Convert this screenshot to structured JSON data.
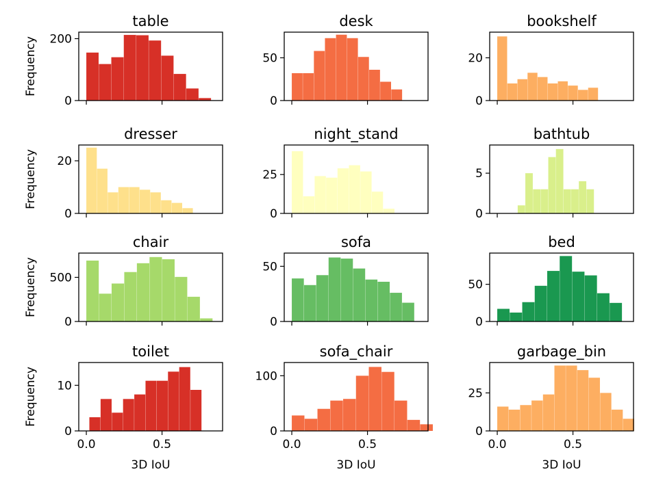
{
  "figure": {
    "colors": [
      "#d73027",
      "#f46d43",
      "#fdae61",
      "#fee08b",
      "#ffffbf",
      "#d9ef8b",
      "#a6d96a",
      "#66bd63",
      "#1a9850"
    ]
  },
  "chart_data": [
    {
      "type": "bar",
      "title": "table",
      "xlabel": "",
      "ylabel": "Frequency",
      "xlim": [
        -0.05,
        0.9
      ],
      "ylim": [
        0,
        221
      ],
      "yticks": [
        {
          "value": 0,
          "label": "0"
        },
        {
          "value": 200,
          "label": "200"
        }
      ],
      "xticks": [
        {
          "value": 0,
          "label": ""
        },
        {
          "value": 0.5,
          "label": ""
        }
      ],
      "bin_start": 0.0,
      "bin_width": 0.0825,
      "values": [
        155,
        118,
        140,
        212,
        211,
        194,
        145,
        86,
        39,
        8
      ],
      "color": "#d73027"
    },
    {
      "type": "bar",
      "title": "desk",
      "xlabel": "",
      "ylabel": "",
      "xlim": [
        -0.05,
        0.9
      ],
      "ylim": [
        0,
        80
      ],
      "yticks": [
        {
          "value": 0,
          "label": "0"
        },
        {
          "value": 50,
          "label": "50"
        }
      ],
      "xticks": [
        {
          "value": 0,
          "label": ""
        },
        {
          "value": 0.5,
          "label": ""
        }
      ],
      "bin_start": 0.0,
      "bin_width": 0.073,
      "values": [
        32,
        32,
        58,
        73,
        77,
        73,
        51,
        36,
        22,
        13
      ],
      "color": "#f46d43"
    },
    {
      "type": "bar",
      "title": "bookshelf",
      "xlabel": "",
      "ylabel": "",
      "xlim": [
        -0.05,
        0.9
      ],
      "ylim": [
        0,
        32
      ],
      "yticks": [
        {
          "value": 0,
          "label": "0"
        },
        {
          "value": 20,
          "label": "20"
        }
      ],
      "xticks": [
        {
          "value": 0,
          "label": ""
        },
        {
          "value": 0.5,
          "label": ""
        }
      ],
      "bin_start": 0.0,
      "bin_width": 0.0667,
      "values": [
        30,
        8,
        10,
        13,
        11,
        8,
        9,
        7,
        5,
        6
      ],
      "color": "#fdae61"
    },
    {
      "type": "bar",
      "title": "dresser",
      "xlabel": "",
      "ylabel": "Frequency",
      "xlim": [
        -0.05,
        0.9
      ],
      "ylim": [
        0,
        26
      ],
      "yticks": [
        {
          "value": 0,
          "label": "0"
        },
        {
          "value": 20,
          "label": "20"
        }
      ],
      "xticks": [
        {
          "value": 0,
          "label": ""
        },
        {
          "value": 0.5,
          "label": ""
        }
      ],
      "bin_start": 0.0,
      "bin_width": 0.0705,
      "values": [
        25,
        17,
        8,
        10,
        10,
        9,
        8,
        5,
        4,
        2
      ],
      "color": "#fee08b"
    },
    {
      "type": "bar",
      "title": "night_stand",
      "xlabel": "",
      "ylabel": "",
      "xlim": [
        -0.05,
        0.9
      ],
      "ylim": [
        0,
        44
      ],
      "yticks": [
        {
          "value": 0,
          "label": "0"
        },
        {
          "value": 25,
          "label": "25"
        }
      ],
      "xticks": [
        {
          "value": 0,
          "label": ""
        },
        {
          "value": 0.5,
          "label": ""
        }
      ],
      "bin_start": 0.0,
      "bin_width": 0.0755,
      "values": [
        40,
        11,
        24,
        23,
        29,
        31,
        27,
        14,
        3
      ],
      "color": "#ffffbf"
    },
    {
      "type": "bar",
      "title": "bathtub",
      "xlabel": "",
      "ylabel": "",
      "xlim": [
        -0.05,
        0.9
      ],
      "ylim": [
        0,
        8.5
      ],
      "yticks": [
        {
          "value": 0,
          "label": "0"
        },
        {
          "value": 5,
          "label": "5"
        }
      ],
      "xticks": [
        {
          "value": 0,
          "label": ""
        },
        {
          "value": 0.5,
          "label": ""
        }
      ],
      "bin_start": 0.135,
      "bin_width": 0.0505,
      "values": [
        1,
        5,
        3,
        3,
        7,
        8,
        3,
        3,
        4,
        3
      ],
      "color": "#d9ef8b"
    },
    {
      "type": "bar",
      "title": "chair",
      "xlabel": "",
      "ylabel": "Frequency",
      "xlim": [
        -0.05,
        0.9
      ],
      "ylim": [
        0,
        775
      ],
      "yticks": [
        {
          "value": 0,
          "label": "0"
        },
        {
          "value": 500,
          "label": "500"
        }
      ],
      "xticks": [
        {
          "value": 0,
          "label": ""
        },
        {
          "value": 0.5,
          "label": ""
        }
      ],
      "bin_start": 0.0,
      "bin_width": 0.0835,
      "values": [
        690,
        315,
        430,
        560,
        660,
        730,
        705,
        505,
        280,
        35
      ],
      "color": "#a6d96a"
    },
    {
      "type": "bar",
      "title": "sofa",
      "xlabel": "",
      "ylabel": "",
      "xlim": [
        -0.05,
        0.9
      ],
      "ylim": [
        0,
        62
      ],
      "yticks": [
        {
          "value": 0,
          "label": "0"
        },
        {
          "value": 50,
          "label": "50"
        }
      ],
      "xticks": [
        {
          "value": 0,
          "label": ""
        },
        {
          "value": 0.5,
          "label": ""
        }
      ],
      "bin_start": 0.0,
      "bin_width": 0.081,
      "values": [
        39,
        33,
        42,
        58,
        57,
        48,
        38,
        36,
        26,
        17
      ],
      "color": "#66bd63"
    },
    {
      "type": "bar",
      "title": "bed",
      "xlabel": "",
      "ylabel": "",
      "xlim": [
        -0.05,
        0.9
      ],
      "ylim": [
        0,
        92
      ],
      "yticks": [
        {
          "value": 0,
          "label": "0"
        },
        {
          "value": 50,
          "label": "50"
        }
      ],
      "xticks": [
        {
          "value": 0,
          "label": ""
        },
        {
          "value": 0.5,
          "label": ""
        }
      ],
      "bin_start": 0.0,
      "bin_width": 0.0825,
      "values": [
        17,
        12,
        26,
        48,
        68,
        88,
        67,
        62,
        38,
        25
      ],
      "color": "#1a9850"
    },
    {
      "type": "bar",
      "title": "toilet",
      "xlabel": "3D IoU",
      "ylabel": "Frequency",
      "xlim": [
        -0.05,
        0.9
      ],
      "ylim": [
        0,
        15
      ],
      "yticks": [
        {
          "value": 0,
          "label": "0"
        },
        {
          "value": 10,
          "label": "10"
        }
      ],
      "xticks": [
        {
          "value": 0,
          "label": "0.0"
        },
        {
          "value": 0.5,
          "label": "0.5"
        }
      ],
      "bin_start": 0.02,
      "bin_width": 0.0742,
      "values": [
        3,
        7,
        4,
        7,
        8,
        11,
        11,
        13,
        14,
        9
      ],
      "color": "#d73027"
    },
    {
      "type": "bar",
      "title": "sofa_chair",
      "xlabel": "3D IoU",
      "ylabel": "",
      "xlim": [
        -0.05,
        0.9
      ],
      "ylim": [
        0,
        124
      ],
      "yticks": [
        {
          "value": 0,
          "label": "0"
        },
        {
          "value": 100,
          "label": "100"
        }
      ],
      "xticks": [
        {
          "value": 0,
          "label": "0.0"
        },
        {
          "value": 0.5,
          "label": "0.5"
        }
      ],
      "bin_start": 0.0,
      "bin_width": 0.0848,
      "values": [
        28,
        22,
        40,
        55,
        58,
        100,
        116,
        107,
        55,
        20,
        12
      ],
      "color": "#f46d43"
    },
    {
      "type": "bar",
      "title": "garbage_bin",
      "xlabel": "3D IoU",
      "ylabel": "",
      "xlim": [
        -0.05,
        0.9
      ],
      "ylim": [
        0,
        45
      ],
      "yticks": [
        {
          "value": 0,
          "label": "0"
        },
        {
          "value": 25,
          "label": "25"
        }
      ],
      "xticks": [
        {
          "value": 0,
          "label": "0.0"
        },
        {
          "value": 0.5,
          "label": "0.5"
        }
      ],
      "bin_start": 0.0,
      "bin_width": 0.0755,
      "values": [
        16,
        14,
        17,
        20,
        24,
        43,
        43,
        40,
        35,
        25,
        14,
        8
      ],
      "color": "#fdae61"
    }
  ]
}
